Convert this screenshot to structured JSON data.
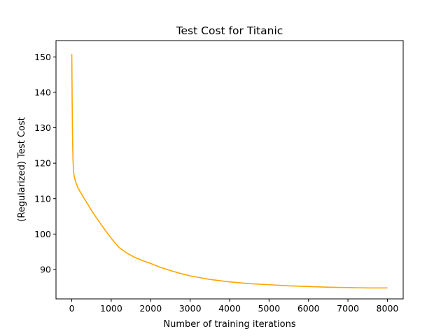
{
  "chart_data": {
    "type": "line",
    "title": "Test Cost for Titanic",
    "xlabel": "Number of training iterations",
    "ylabel": "(Regularized) Test Cost",
    "xlim": [
      -400,
      8400
    ],
    "ylim": [
      81.7,
      154.6
    ],
    "xticks": [
      0,
      1000,
      2000,
      3000,
      4000,
      5000,
      6000,
      7000,
      8000
    ],
    "yticks": [
      90,
      100,
      110,
      120,
      130,
      140,
      150
    ],
    "grid": false,
    "color": "#ffa500",
    "series": [
      {
        "x": [
          0,
          10,
          20,
          30,
          40,
          50,
          60,
          80,
          100,
          150,
          200,
          300,
          400,
          500,
          600,
          700,
          800,
          1000,
          1200,
          1400,
          1600,
          1800,
          2000,
          2250,
          2500,
          2750,
          3000,
          3500,
          4000,
          4500,
          5000,
          5500,
          6000,
          6500,
          7000,
          7500,
          8000
        ],
        "y": [
          150.8,
          137,
          127,
          121.5,
          118.8,
          117.2,
          116.4,
          115.4,
          114.7,
          113.2,
          112.2,
          110.3,
          108.5,
          106.7,
          105.0,
          103.4,
          101.8,
          98.8,
          96.2,
          94.6,
          93.4,
          92.5,
          91.7,
          90.6,
          89.7,
          88.9,
          88.2,
          87.2,
          86.5,
          86.0,
          85.7,
          85.4,
          85.2,
          85.0,
          84.9,
          84.8,
          84.8
        ]
      }
    ]
  }
}
